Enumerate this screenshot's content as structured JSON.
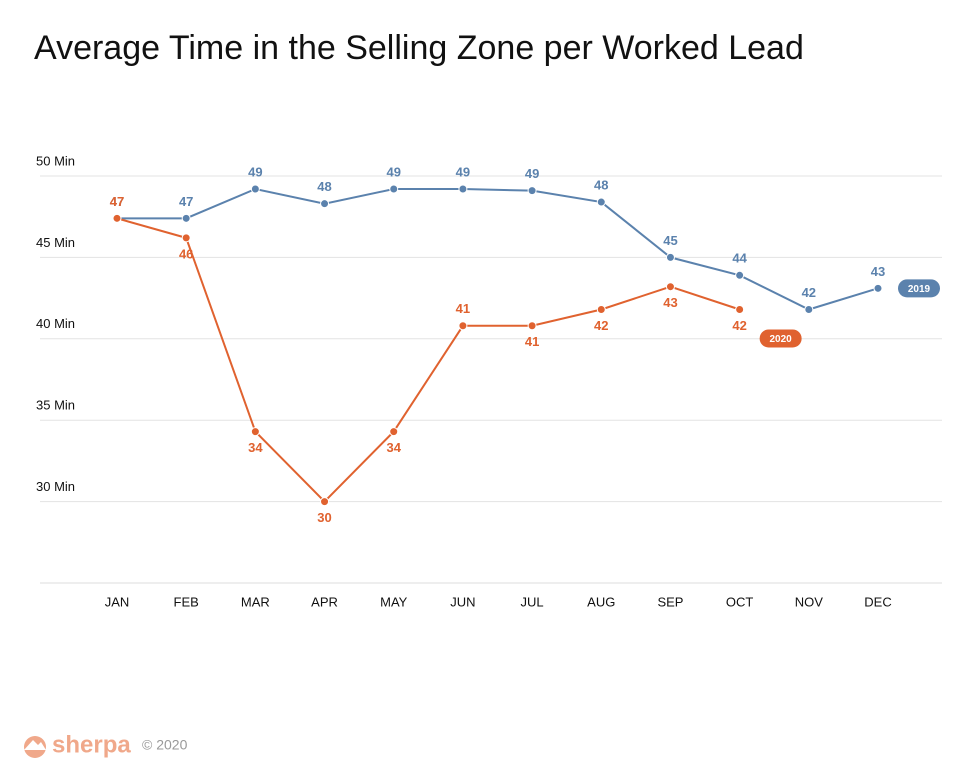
{
  "chart_data": {
    "type": "line",
    "title": "Average Time in the Selling Zone per Worked Lead",
    "categories": [
      "JAN",
      "FEB",
      "MAR",
      "APR",
      "MAY",
      "JUN",
      "JUL",
      "AUG",
      "SEP",
      "OCT",
      "NOV",
      "DEC"
    ],
    "series": [
      {
        "name": "2019",
        "color": "#5b82ad",
        "values": [
          47.4,
          47.4,
          49.2,
          48.3,
          49.2,
          49.2,
          49.1,
          48.4,
          45,
          43.9,
          41.8,
          43.1
        ],
        "value_labels": [
          "47",
          "47",
          "49",
          "48",
          "49",
          "49",
          "49",
          "48",
          "45",
          "44",
          "42",
          "43"
        ]
      },
      {
        "name": "2020",
        "color": "#e0622f",
        "values": [
          47.4,
          46.2,
          34.3,
          30,
          34.3,
          40.8,
          40.8,
          41.8,
          43.2,
          41.8,
          null,
          null
        ],
        "value_labels": [
          "47",
          "46",
          "34",
          "30",
          "34",
          "41",
          "41",
          "42",
          "43",
          "42",
          null,
          null
        ]
      }
    ],
    "ylim": [
      25,
      50
    ],
    "yticks": [
      {
        "value": 30,
        "label": "30 Min"
      },
      {
        "value": 35,
        "label": "35 Min"
      },
      {
        "value": 40,
        "label": "40 Min"
      },
      {
        "value": 45,
        "label": "45 Min"
      },
      {
        "value": 50,
        "label": "50 Min"
      }
    ],
    "grid": true
  },
  "footer": {
    "brand": "sherpa",
    "copyright": "© 2020"
  }
}
